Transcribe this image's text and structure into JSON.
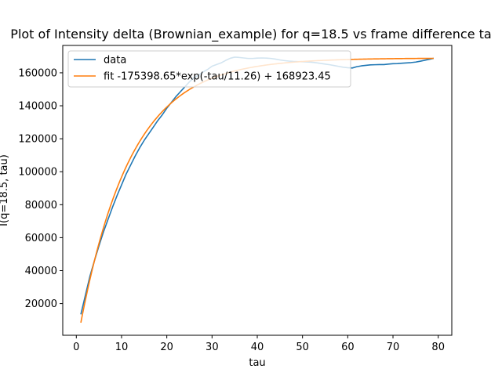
{
  "chart_data": {
    "type": "line",
    "title": "Plot of Intensity delta (Brownian_example) for q=18.5 vs frame difference ta",
    "xlabel": "tau",
    "ylabel": "I(q=18.5, tau)",
    "xlim": [
      -3,
      83
    ],
    "ylim": [
      800,
      176600
    ],
    "xticks": [
      0,
      10,
      20,
      30,
      40,
      50,
      60,
      70,
      80
    ],
    "yticks": [
      20000,
      40000,
      60000,
      80000,
      100000,
      120000,
      140000,
      160000
    ],
    "grid": false,
    "legend_position": "top-left",
    "series": [
      {
        "name": "data",
        "color": "#1f77b4",
        "x": [
          1,
          2,
          3,
          4,
          5,
          6,
          7,
          8,
          9,
          10,
          11,
          12,
          13,
          14,
          15,
          16,
          17,
          18,
          19,
          20,
          21,
          22,
          23,
          24,
          25,
          26,
          27,
          28,
          29,
          30,
          31,
          32,
          33,
          34,
          35,
          36,
          37,
          38,
          39,
          40,
          41,
          42,
          43,
          44,
          45,
          46,
          47,
          48,
          49,
          50,
          51,
          52,
          53,
          54,
          55,
          56,
          57,
          58,
          59,
          60,
          61,
          62,
          63,
          64,
          65,
          66,
          67,
          68,
          69,
          70,
          71,
          72,
          73,
          74,
          75,
          76,
          77,
          78,
          79
        ],
        "y": [
          13500,
          25000,
          36500,
          46000,
          55000,
          63500,
          71000,
          78500,
          85500,
          92000,
          98500,
          104000,
          109500,
          114500,
          119000,
          123000,
          127000,
          131000,
          134500,
          138500,
          142000,
          145500,
          148500,
          151500,
          154500,
          157000,
          158500,
          160500,
          162000,
          164000,
          165000,
          166000,
          167500,
          168800,
          169500,
          169300,
          169000,
          168700,
          168700,
          168900,
          169000,
          168900,
          168700,
          168300,
          167800,
          167400,
          167100,
          166900,
          166800,
          166700,
          166600,
          166400,
          166100,
          165700,
          165300,
          164900,
          164400,
          163900,
          163400,
          163100,
          162900,
          163700,
          164200,
          164500,
          164800,
          164900,
          165000,
          165000,
          165300,
          165500,
          165600,
          165800,
          166000,
          166200,
          166500,
          167000,
          167600,
          168200,
          168800
        ]
      },
      {
        "name": "fit -175398.65*exp(-tau/11.26) + 168923.45",
        "color": "#ff7f0e",
        "function": {
          "a": -175398.65,
          "b": 11.26,
          "c": 168923.45
        },
        "x_range": [
          1,
          79
        ]
      }
    ]
  }
}
